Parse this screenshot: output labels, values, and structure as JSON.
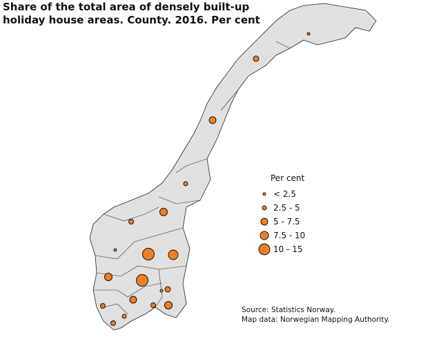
{
  "title": {
    "lines": [
      "Share of the total area of densely built-up",
      "holiday house areas. County. 2016. Per cent"
    ]
  },
  "legend": {
    "title": "Per cent",
    "items": [
      "< 2.5",
      "2.5 - 5",
      "5 - 7.5",
      "7.5 - 10",
      "10 - 15"
    ]
  },
  "source": {
    "lines": [
      "Source: Statistics Norway.",
      "Map data: Norwegian Mapping Authority."
    ]
  }
}
